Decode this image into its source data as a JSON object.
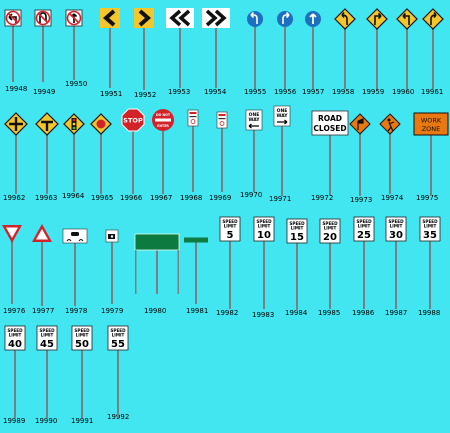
{
  "colors": {
    "background": "#42e6f0",
    "pole": "#7a7f83",
    "warning_yellow": "#f4c62a",
    "regulatory_white": "#f7f7f7",
    "stop_red": "#d2232a",
    "construction_orange": "#e8780f",
    "guide_green": "#0d7a3f",
    "mandatory_blue": "#1d6fbf"
  },
  "signs": [
    {
      "code": "19948",
      "icon": "no-left-turn-icon"
    },
    {
      "code": "19949",
      "icon": "no-u-turn-icon"
    },
    {
      "code": "19950",
      "icon": "no-turn-icon"
    },
    {
      "code": "19951",
      "icon": "chevron-left-icon"
    },
    {
      "code": "19952",
      "icon": "chevron-right-icon"
    },
    {
      "code": "19953",
      "icon": "double-chevron-left-icon"
    },
    {
      "code": "19954",
      "icon": "double-chevron-right-icon"
    },
    {
      "code": "19955",
      "icon": "mandatory-left-icon"
    },
    {
      "code": "19956",
      "icon": "mandatory-right-icon"
    },
    {
      "code": "19957",
      "icon": "mandatory-ahead-icon"
    },
    {
      "code": "19958",
      "icon": "warning-curve-left-icon"
    },
    {
      "code": "19959",
      "icon": "warning-turn-right-icon"
    },
    {
      "code": "19960",
      "icon": "warning-turn-left-icon"
    },
    {
      "code": "19961",
      "icon": "warning-curve-right-icon"
    },
    {
      "code": "19962",
      "icon": "crossroads-warning-icon"
    },
    {
      "code": "19963",
      "icon": "t-junction-warning-icon"
    },
    {
      "code": "19964",
      "icon": "signal-ahead-warning-icon"
    },
    {
      "code": "19965",
      "icon": "stop-ahead-warning-icon"
    },
    {
      "code": "19966",
      "icon": "stop-sign-icon",
      "text": "STOP"
    },
    {
      "code": "19967",
      "icon": "do-not-enter-icon",
      "text": "DO NOT ENTER"
    },
    {
      "code": "19968",
      "icon": "small-regulatory-icon"
    },
    {
      "code": "19969",
      "icon": "small-regulatory-icon"
    },
    {
      "code": "19970",
      "icon": "one-way-left-icon",
      "text": "ONE WAY"
    },
    {
      "code": "19971",
      "icon": "one-way-right-icon",
      "text": "ONE WAY"
    },
    {
      "code": "19972",
      "icon": "road-closed-barrier-icon",
      "text": "ROAD CLOSED"
    },
    {
      "code": "19973",
      "icon": "flagger-ahead-icon"
    },
    {
      "code": "19974",
      "icon": "workers-ahead-icon"
    },
    {
      "code": "19975",
      "icon": "work-zone-icon",
      "text": "WORK ZONE"
    },
    {
      "code": "19976",
      "icon": "yield-icon"
    },
    {
      "code": "19977",
      "icon": "triangle-warning-icon"
    },
    {
      "code": "19978",
      "icon": "slippery-road-icon"
    },
    {
      "code": "19979",
      "icon": "speed-camera-icon"
    },
    {
      "code": "19980",
      "icon": "green-guide-sign-icon"
    },
    {
      "code": "19981",
      "icon": "green-street-name-icon"
    },
    {
      "code": "19982",
      "icon": "speed-limit-icon",
      "text": "SPEED LIMIT",
      "value": "5"
    },
    {
      "code": "19983",
      "icon": "speed-limit-icon",
      "text": "SPEED LIMIT",
      "value": "10"
    },
    {
      "code": "19984",
      "icon": "speed-limit-icon",
      "text": "SPEED LIMIT",
      "value": "15"
    },
    {
      "code": "19985",
      "icon": "speed-limit-icon",
      "text": "SPEED LIMIT",
      "value": "20"
    },
    {
      "code": "19986",
      "icon": "speed-limit-icon",
      "text": "SPEED LIMIT",
      "value": "25"
    },
    {
      "code": "19987",
      "icon": "speed-limit-icon",
      "text": "SPEED LIMIT",
      "value": "30"
    },
    {
      "code": "19988",
      "icon": "speed-limit-icon",
      "text": "SPEED LIMIT",
      "value": "35"
    },
    {
      "code": "19989",
      "icon": "speed-limit-icon",
      "text": "SPEED LIMIT",
      "value": "40"
    },
    {
      "code": "19990",
      "icon": "speed-limit-icon",
      "text": "SPEED LIMIT",
      "value": "45"
    },
    {
      "code": "19991",
      "icon": "speed-limit-icon",
      "text": "SPEED LIMIT",
      "value": "50"
    },
    {
      "code": "19992",
      "icon": "speed-limit-icon",
      "text": "SPEED LIMIT",
      "value": "55"
    }
  ]
}
